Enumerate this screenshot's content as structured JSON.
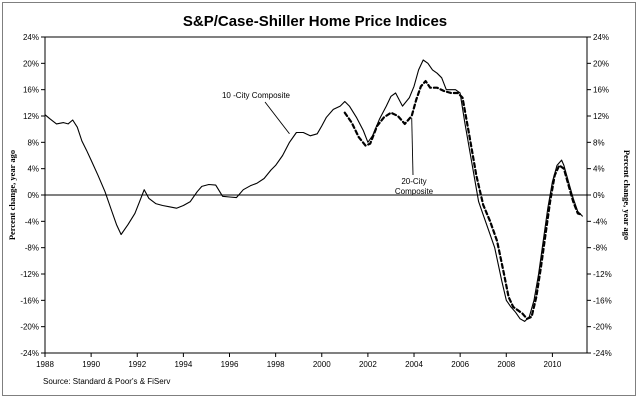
{
  "chart_data": {
    "type": "line",
    "title": "S&P/Case-Shiller Home Price Indices",
    "ylabel_left": "Percent change, year ago",
    "ylabel_right": "Percent change, year ago",
    "source": "Source: Standard & Poor's & FiServ",
    "ylim": [
      -24,
      24
    ],
    "xlim": [
      1988,
      2011.5
    ],
    "y_ticks": [
      24,
      20,
      16,
      12,
      8,
      4,
      0,
      -4,
      -8,
      -12,
      -16,
      -20,
      -24
    ],
    "y_tick_labels": [
      "24%",
      "20%",
      "16%",
      "12%",
      "8%",
      "4%",
      "0%",
      "-4%",
      "-8%",
      "-12%",
      "-16%",
      "-20%",
      "-24%"
    ],
    "x_ticks": [
      1988,
      1990,
      1992,
      1994,
      1996,
      1998,
      2000,
      2002,
      2004,
      2006,
      2008,
      2010
    ],
    "x_tick_labels": [
      "1988",
      "1990",
      "1992",
      "1994",
      "1996",
      "1998",
      "2000",
      "2002",
      "2004",
      "2006",
      "2008",
      "2010"
    ],
    "grid": false,
    "zero_line": true,
    "series": [
      {
        "name": "10 -City Composite",
        "style": "solid",
        "color": "#000000",
        "x": [
          1988.0,
          1988.2,
          1988.5,
          1988.8,
          1989.0,
          1989.2,
          1989.4,
          1989.6,
          1989.8,
          1990.0,
          1990.3,
          1990.6,
          1990.9,
          1991.1,
          1991.3,
          1991.6,
          1991.9,
          1992.1,
          1992.3,
          1992.5,
          1992.8,
          1993.1,
          1993.4,
          1993.7,
          1994.0,
          1994.3,
          1994.6,
          1994.8,
          1995.1,
          1995.4,
          1995.7,
          1996.0,
          1996.3,
          1996.6,
          1996.9,
          1997.2,
          1997.5,
          1997.8,
          1998.0,
          1998.3,
          1998.6,
          1998.9,
          1999.2,
          1999.5,
          1999.8,
          2000.0,
          2000.2,
          2000.5,
          2000.8,
          2001.0,
          2001.2,
          2001.5,
          2001.8,
          2002.0,
          2002.2,
          2002.5,
          2002.8,
          2003.0,
          2003.2,
          2003.5,
          2003.8,
          2004.0,
          2004.2,
          2004.4,
          2004.6,
          2004.8,
          2005.0,
          2005.2,
          2005.4,
          2005.6,
          2005.8,
          2006.0,
          2006.2,
          2006.5,
          2006.8,
          2007.0,
          2007.2,
          2007.5,
          2007.8,
          2008.0,
          2008.2,
          2008.4,
          2008.6,
          2008.8,
          2009.0,
          2009.2,
          2009.4,
          2009.6,
          2009.8,
          2010.0,
          2010.2,
          2010.4,
          2010.5,
          2010.7,
          2010.9,
          2011.1,
          2011.3
        ],
        "y": [
          12.2,
          11.6,
          10.8,
          11.0,
          10.8,
          11.4,
          10.3,
          8.2,
          6.8,
          5.3,
          3.0,
          0.5,
          -2.5,
          -4.5,
          -6.0,
          -4.5,
          -2.8,
          -1.0,
          0.8,
          -0.5,
          -1.3,
          -1.6,
          -1.8,
          -2.0,
          -1.6,
          -1.0,
          0.5,
          1.3,
          1.6,
          1.5,
          -0.2,
          -0.3,
          -0.4,
          0.8,
          1.4,
          1.8,
          2.5,
          3.8,
          4.5,
          6.0,
          8.0,
          9.5,
          9.5,
          9.0,
          9.3,
          10.5,
          11.8,
          13.0,
          13.5,
          14.2,
          13.5,
          11.8,
          9.8,
          8.0,
          9.0,
          11.5,
          13.5,
          15.0,
          15.5,
          13.5,
          14.8,
          16.5,
          19.0,
          20.5,
          20.0,
          19.0,
          18.5,
          17.8,
          16.0,
          16.0,
          16.0,
          15.5,
          11.0,
          5.0,
          -1.0,
          -3.0,
          -5.0,
          -8.0,
          -13.0,
          -16.0,
          -17.0,
          -17.8,
          -18.8,
          -19.2,
          -18.5,
          -16.0,
          -12.0,
          -7.0,
          -2.0,
          2.0,
          4.5,
          5.3,
          4.5,
          2.0,
          -0.5,
          -2.5,
          -3.2
        ]
      },
      {
        "name": "20-City Composite",
        "style": "dashed",
        "color": "#000000",
        "x": [
          2001.0,
          2001.3,
          2001.6,
          2001.9,
          2002.1,
          2002.4,
          2002.7,
          2003.0,
          2003.3,
          2003.6,
          2003.9,
          2004.1,
          2004.3,
          2004.5,
          2004.7,
          2005.0,
          2005.3,
          2005.6,
          2005.9,
          2006.1,
          2006.4,
          2006.7,
          2007.0,
          2007.3,
          2007.6,
          2007.9,
          2008.1,
          2008.3,
          2008.5,
          2008.7,
          2008.9,
          2009.1,
          2009.3,
          2009.5,
          2009.7,
          2009.9,
          2010.1,
          2010.3,
          2010.5,
          2010.7,
          2010.9,
          2011.1,
          2011.3
        ],
        "y": [
          12.5,
          11.0,
          8.8,
          7.5,
          7.8,
          10.5,
          11.8,
          12.5,
          12.0,
          10.8,
          12.0,
          14.5,
          16.5,
          17.3,
          16.3,
          16.3,
          15.8,
          15.5,
          15.5,
          14.8,
          9.0,
          3.0,
          -1.5,
          -4.0,
          -7.0,
          -12.0,
          -15.5,
          -17.0,
          -17.5,
          -18.0,
          -18.8,
          -18.5,
          -15.5,
          -11.0,
          -6.0,
          -1.0,
          3.0,
          4.5,
          4.0,
          1.5,
          -1.0,
          -2.8,
          -3.0
        ]
      }
    ],
    "annotations": [
      {
        "text_lines": [
          "10 -City Composite"
        ],
        "points_to_x": 1998.6,
        "points_to_y": 9.3
      },
      {
        "text_lines": [
          "20-City",
          "Composite"
        ],
        "points_to_x": 2003.9,
        "points_to_y": 12.0
      }
    ]
  }
}
